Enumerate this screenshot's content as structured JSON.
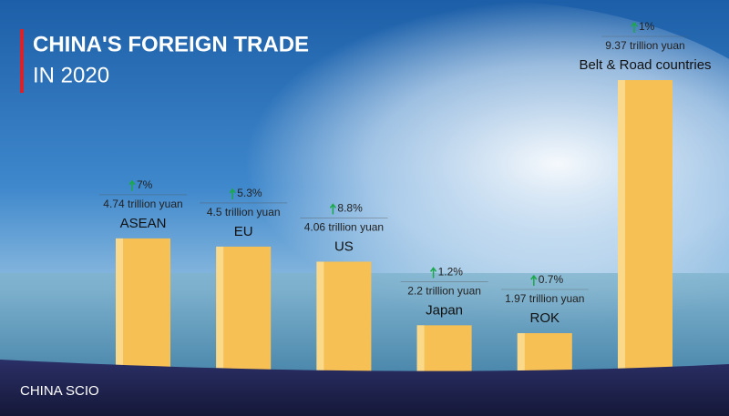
{
  "chart_data": {
    "type": "bar",
    "title": "CHINA'S FOREIGN TRADE",
    "subtitle": "IN 2020",
    "categories": [
      "ASEAN",
      "EU",
      "US",
      "Japan",
      "ROK",
      "Belt & Road countries"
    ],
    "values": [
      4.74,
      4.5,
      4.06,
      2.2,
      1.97,
      9.37
    ],
    "value_labels": [
      "4.74 trillion yuan",
      "4.5 trillion yuan",
      "4.06 trillion yuan",
      "2.2 trillion yuan",
      "1.97 trillion yuan",
      "9.37 trillion yuan"
    ],
    "growth_values": [
      7,
      5.3,
      8.8,
      1.2,
      0.7,
      1
    ],
    "growth_labels": [
      "7%",
      "5.3%",
      "8.8%",
      "1.2%",
      "0.7%",
      "1%"
    ],
    "color": "#f6c055",
    "arrow_color": "#1aa84a",
    "source": "CHINA SCIO"
  }
}
